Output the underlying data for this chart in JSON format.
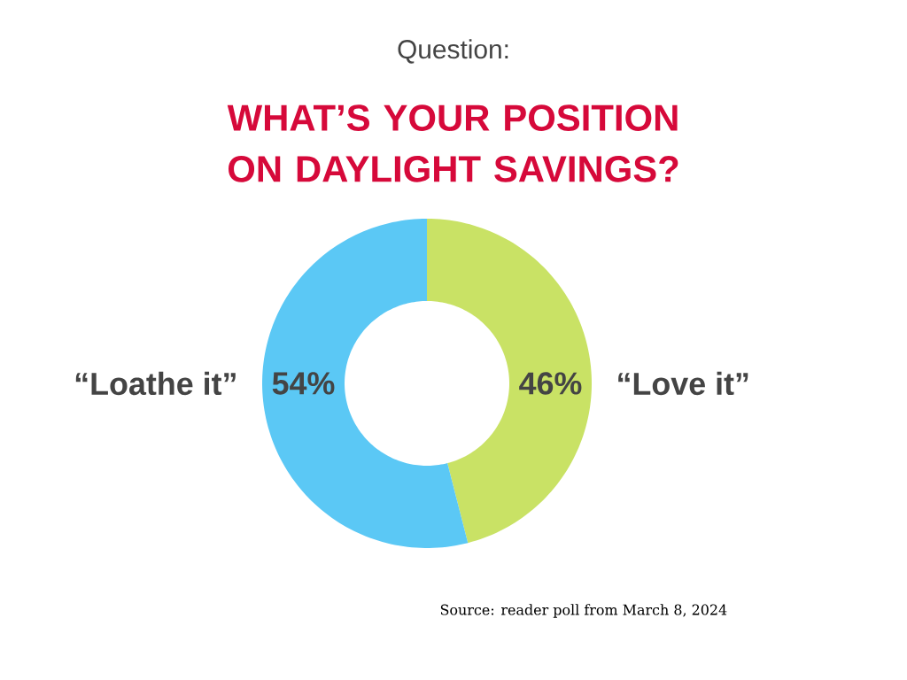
{
  "chart_data": {
    "type": "donut",
    "subtitle": "Question:",
    "title": "WHAT’S YOUR POSITION ON DAYLIGHT SAVINGS?",
    "categories": [
      "“Love it”",
      "“Loathe it”"
    ],
    "values": [
      46,
      54
    ],
    "value_labels": [
      "46%",
      "54%"
    ],
    "colors": [
      "#c9e265",
      "#5bc8f5"
    ],
    "annotations": [
      "Source: reader poll from March 8, 2024"
    ]
  }
}
